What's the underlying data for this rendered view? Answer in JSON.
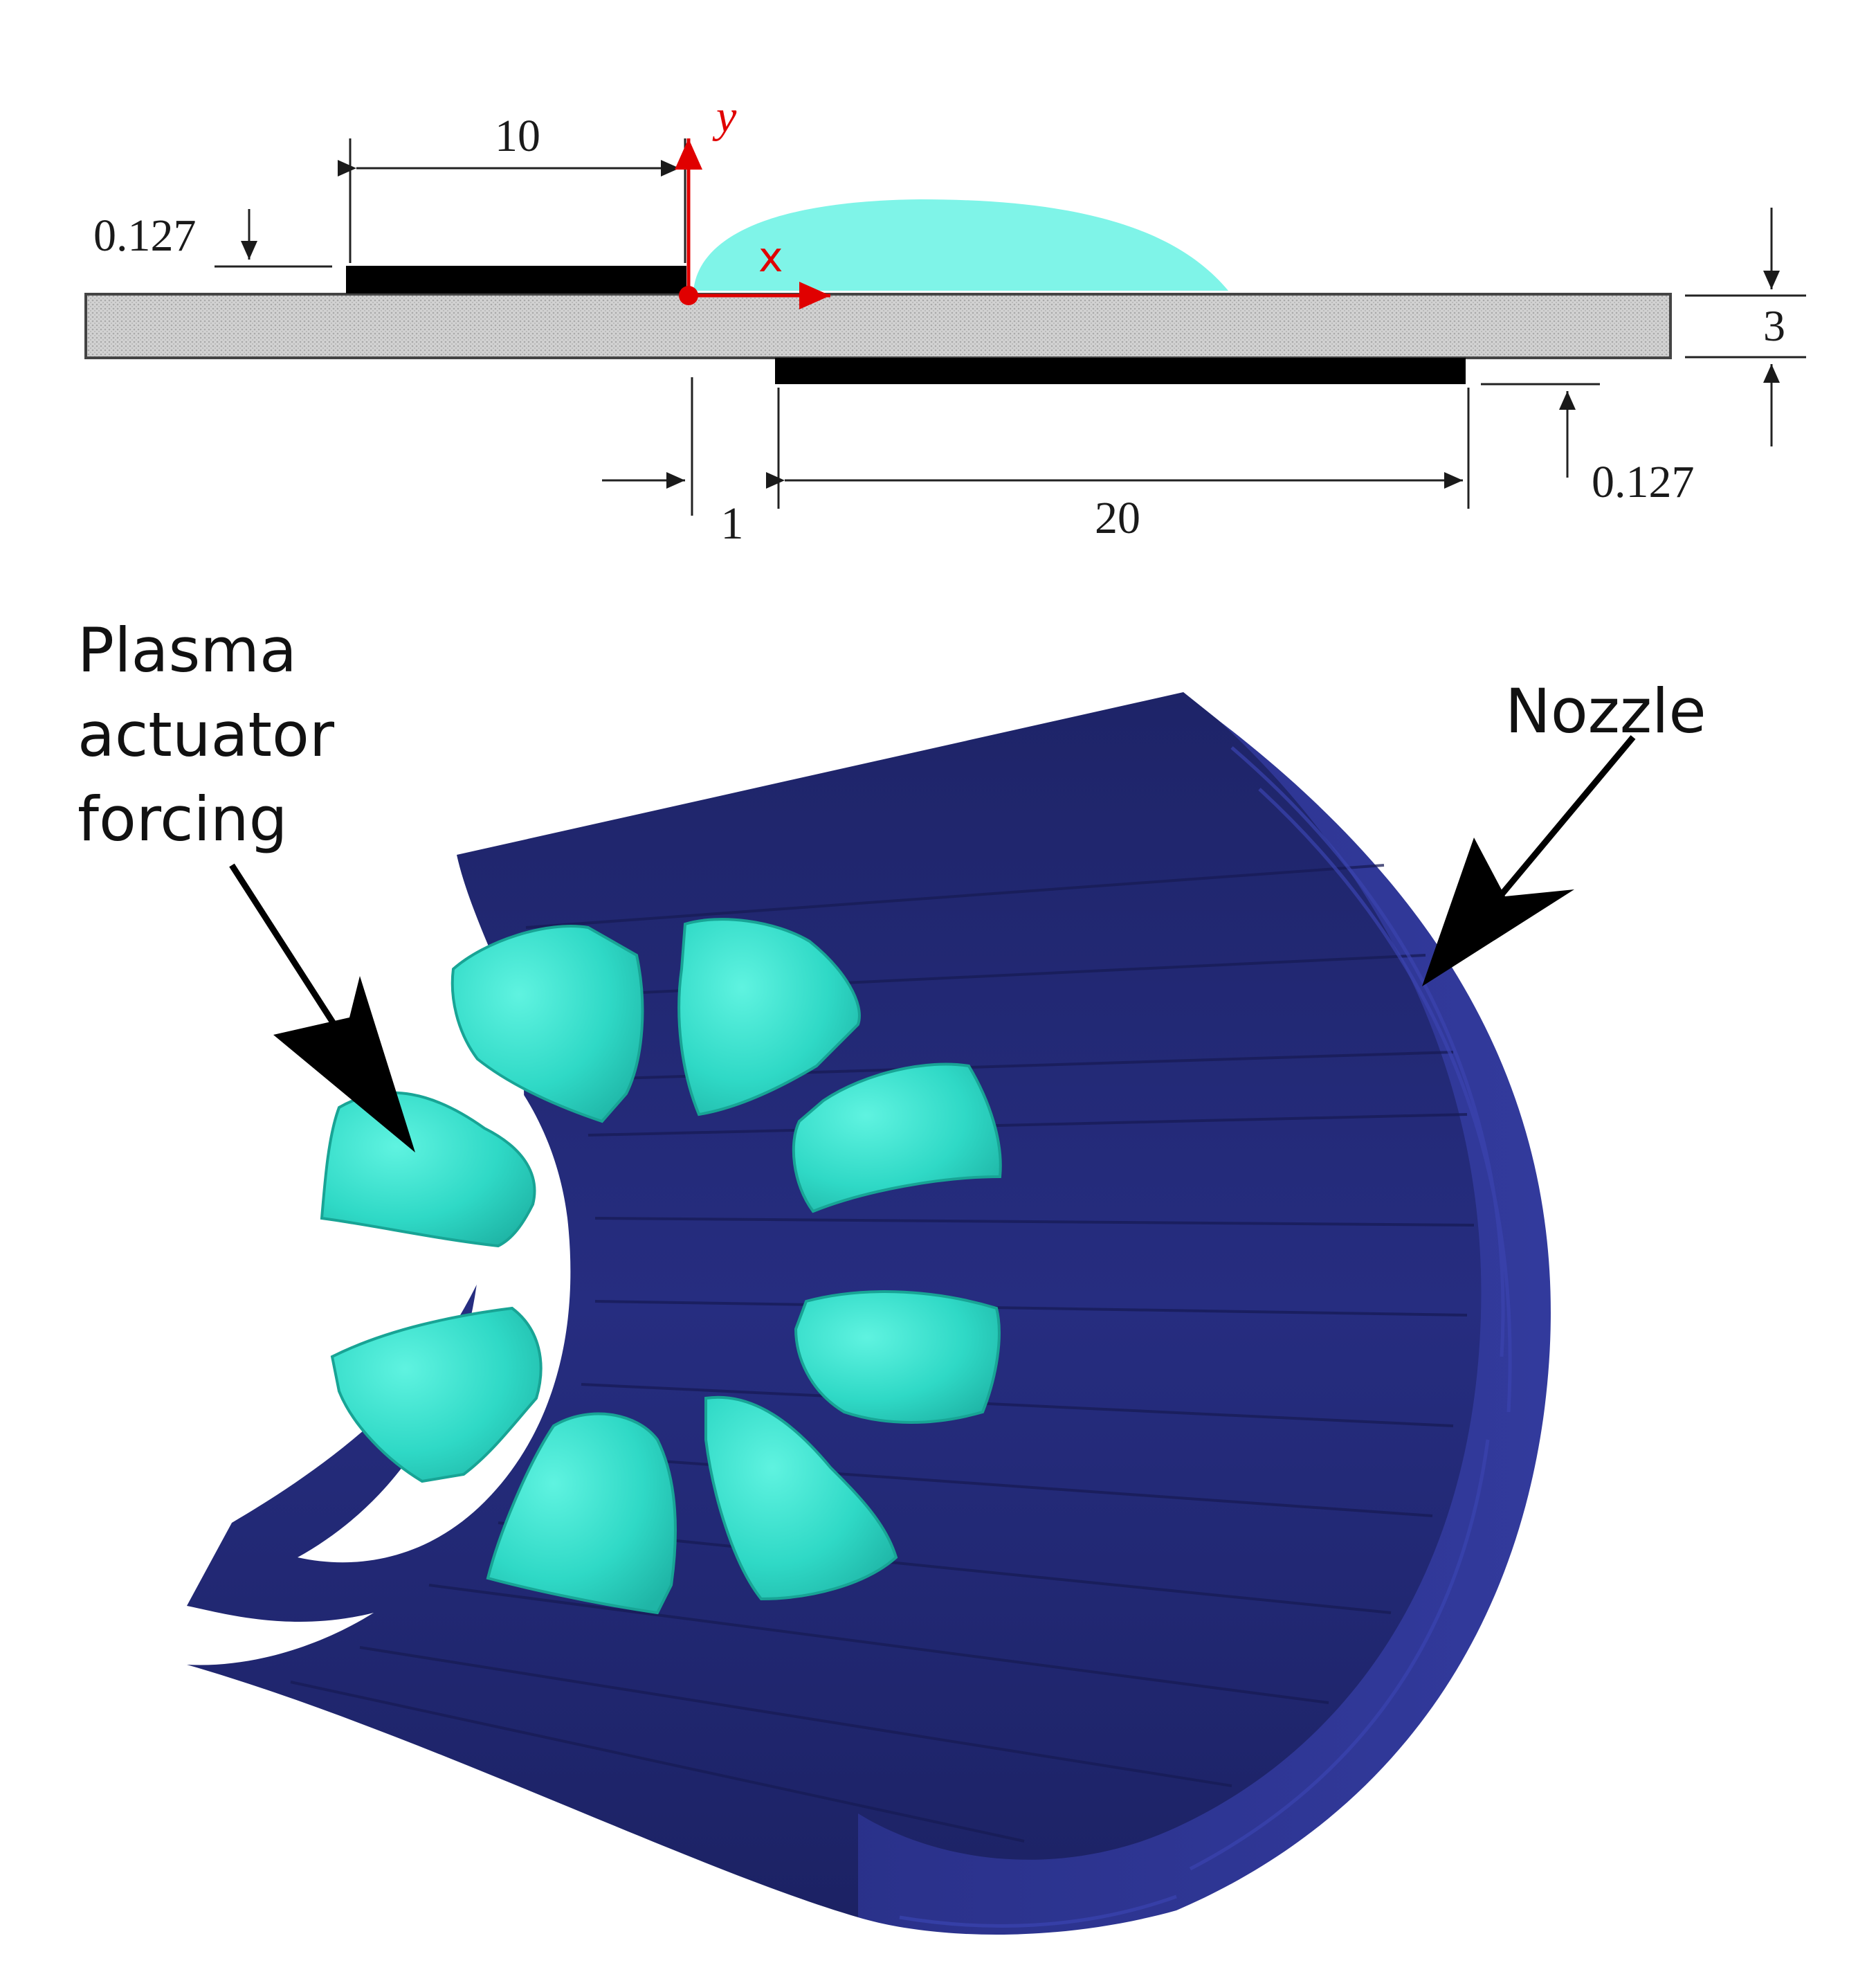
{
  "schematic": {
    "top_electrode_length": "10",
    "top_electrode_thickness": "0.127",
    "dielectric_thickness": "3",
    "gap": "1",
    "bottom_electrode_length": "20",
    "bottom_electrode_thickness": "0.127",
    "axis_y": "y",
    "axis_x": "x"
  },
  "render3d": {
    "label_forcing_line1": "Plasma",
    "label_forcing_line2": "actuator",
    "label_forcing_line3": "forcing",
    "label_nozzle": "Nozzle"
  },
  "colors": {
    "plasma": "#33e6d2",
    "nozzle": "#22287a",
    "electrode": "#000000",
    "dielectric": "#cfcfcf",
    "axis": "#e00000"
  }
}
